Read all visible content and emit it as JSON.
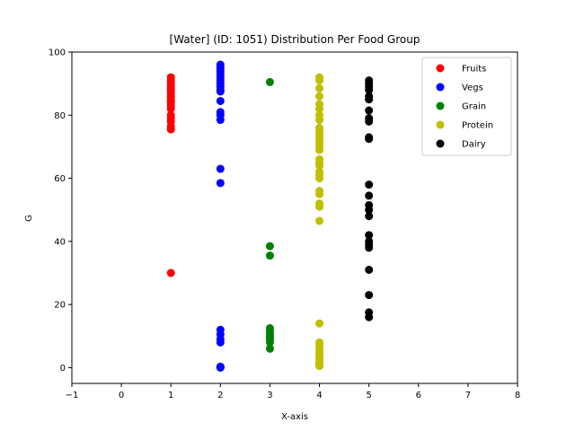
{
  "chart_data": {
    "type": "scatter",
    "title": "[Water] (ID: 1051) Distribution Per Food Group",
    "xlabel": "X-axis",
    "ylabel": "G",
    "xlim": [
      -1,
      8
    ],
    "ylim": [
      -5,
      100
    ],
    "xticks": [
      "−1",
      "0",
      "1",
      "2",
      "3",
      "4",
      "5",
      "6",
      "7",
      "8"
    ],
    "yticks": [
      "0",
      "20",
      "40",
      "60",
      "80",
      "100"
    ],
    "grid": false,
    "legend_position": "top-right",
    "series": [
      {
        "name": "Fruits",
        "color": "#ff0000",
        "x": [
          1,
          1,
          1,
          1,
          1,
          1,
          1,
          1,
          1,
          1,
          1,
          1,
          1,
          1,
          1,
          1,
          1,
          1,
          1
        ],
        "y": [
          92,
          91,
          90,
          89,
          88.5,
          88,
          87,
          86,
          85,
          84.5,
          84,
          83,
          82,
          80,
          79,
          78,
          76.5,
          75.5,
          30
        ]
      },
      {
        "name": "Vegs",
        "color": "#0000ff",
        "x": [
          2,
          2,
          2,
          2,
          2,
          2,
          2,
          2,
          2,
          2,
          2,
          2,
          2,
          2,
          2,
          2,
          2,
          2,
          2,
          2,
          2,
          2,
          2,
          2
        ],
        "y": [
          96,
          95,
          94,
          93,
          92,
          91,
          90,
          89,
          88,
          87.5,
          84.5,
          81,
          80,
          78.5,
          63,
          58.5,
          12,
          10.5,
          9,
          8,
          0.3,
          0.2,
          0.1,
          0
        ]
      },
      {
        "name": "Grain",
        "color": "#008000",
        "x": [
          3,
          3,
          3,
          3,
          3,
          3,
          3,
          3,
          3,
          3,
          3
        ],
        "y": [
          90.5,
          38.5,
          35.5,
          12.5,
          11.5,
          10.5,
          10,
          9.5,
          9,
          8,
          6
        ]
      },
      {
        "name": "Protein",
        "color": "#bfbf00",
        "x": [
          4,
          4,
          4,
          4,
          4,
          4,
          4,
          4,
          4,
          4,
          4,
          4,
          4,
          4,
          4,
          4,
          4,
          4,
          4,
          4,
          4,
          4,
          4,
          4,
          4,
          4,
          4,
          4,
          4,
          4,
          4,
          4,
          4,
          4,
          4,
          4,
          4,
          4
        ],
        "y": [
          92,
          91,
          88.5,
          86,
          83.5,
          82,
          80,
          78.5,
          76,
          75,
          74,
          73,
          72,
          71,
          70,
          69,
          66,
          65,
          64,
          62,
          61,
          60,
          56,
          55,
          52,
          51,
          46.5,
          14,
          8,
          7,
          6,
          5,
          4,
          3,
          2.5,
          1.5,
          1,
          0.5
        ]
      },
      {
        "name": "Dairy",
        "color": "#000000",
        "x": [
          5,
          5,
          5,
          5,
          5,
          5,
          5,
          5,
          5,
          5,
          5,
          5,
          5,
          5,
          5,
          5,
          5,
          5,
          5,
          5,
          5,
          5,
          5,
          5
        ],
        "y": [
          91,
          90,
          89,
          88,
          86,
          85,
          81.5,
          79,
          78,
          73,
          72.5,
          58,
          54.5,
          51.5,
          50,
          48,
          42,
          40,
          39,
          38,
          31,
          23,
          17.5,
          16
        ]
      }
    ]
  }
}
